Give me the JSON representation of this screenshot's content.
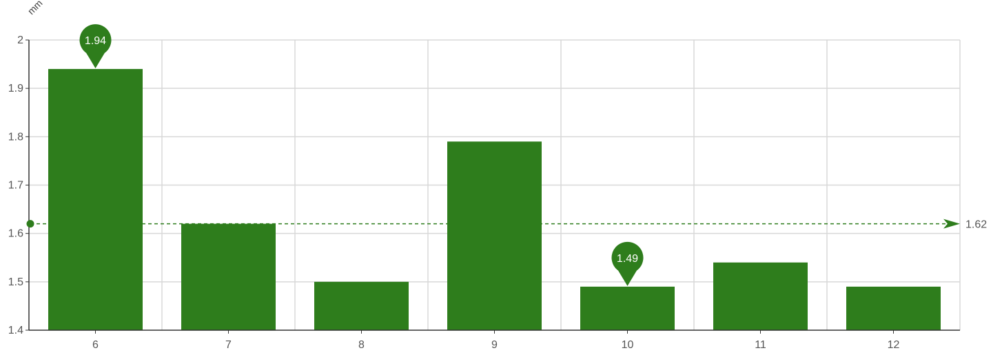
{
  "chart_data": {
    "type": "bar",
    "categories": [
      "6",
      "7",
      "8",
      "9",
      "10",
      "11",
      "12"
    ],
    "values": [
      1.94,
      1.62,
      1.5,
      1.79,
      1.49,
      1.54,
      1.49
    ],
    "ylabel": "mm",
    "ylim": [
      1.4,
      2.0
    ],
    "yticks": [
      "1.4",
      "1.5",
      "1.6",
      "1.7",
      "1.8",
      "1.9",
      "2"
    ],
    "grid": true,
    "legend": "none",
    "colors": {
      "bar": "#2e7d1c",
      "grid": "#d8d8d8",
      "axis": "#333333"
    },
    "mark_points": [
      {
        "type": "max",
        "category": "6",
        "value": 1.94,
        "label": "1.94"
      },
      {
        "type": "min",
        "category": "10",
        "value": 1.49,
        "label": "1.49"
      }
    ],
    "mark_line": {
      "type": "average",
      "value": 1.62,
      "label": "1.62"
    }
  }
}
